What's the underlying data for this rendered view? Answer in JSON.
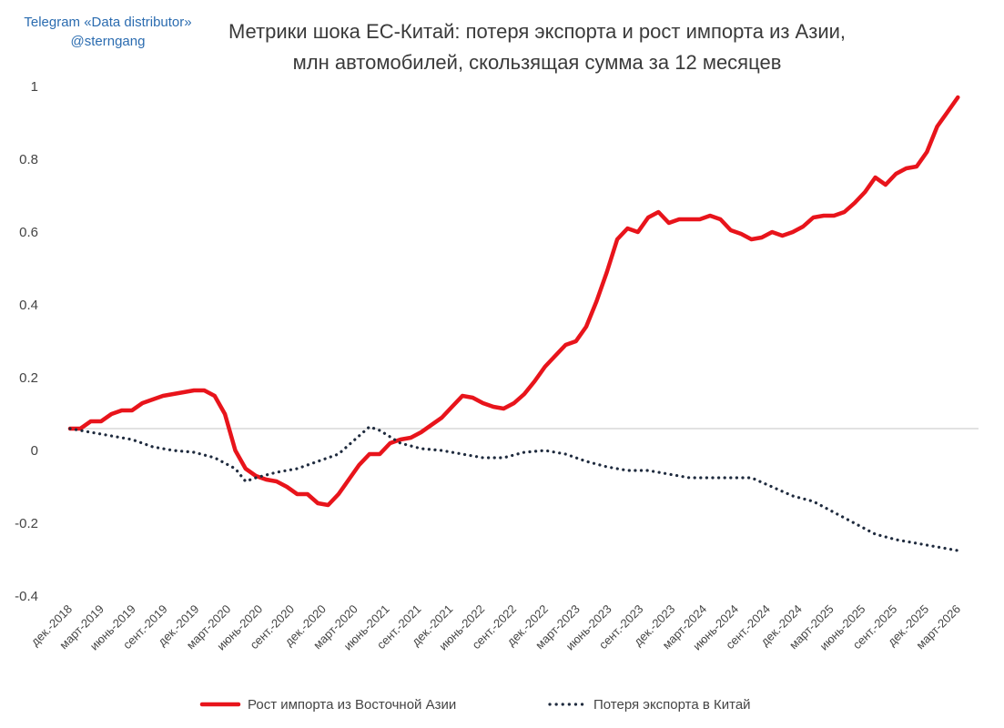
{
  "watermark": {
    "line1": "Telegram «Data distributor»",
    "line2": "@sterngang"
  },
  "title": {
    "line1": "Метрики шока ЕС-Китай: потеря экспорта и рост импорта из Азии,",
    "line2": "млн автомобилей, скользящая сумма за 12 месяцев"
  },
  "chart_data": {
    "type": "line",
    "title": "Метрики шока ЕС-Китай: потеря экспорта и рост импорта из Азии, млн автомобилей, скользящая сумма за 12 месяцев",
    "xlabel": "",
    "ylabel": "",
    "ylim": [
      -0.4,
      1
    ],
    "y_ticks": [
      "1",
      "0.8",
      "0.6",
      "0.4",
      "0.2",
      "0",
      "-0.2",
      "-0.4"
    ],
    "y_tick_values": [
      1,
      0.8,
      0.6,
      0.4,
      0.2,
      0,
      -0.2,
      -0.4
    ],
    "reference_line_y": 0.06,
    "x_tick_labels": [
      "дек.-2018",
      "март-2019",
      "июнь-2019",
      "сент.-2019",
      "дек.-2019",
      "март-2020",
      "июнь-2020",
      "сент.-2020",
      "дек.-2020",
      "март-2020",
      "июнь-2021",
      "сент.-2021",
      "дек.-2021",
      "июнь-2022",
      "сент.-2022",
      "дек.-2022",
      "март-2023",
      "июнь-2023",
      "сент.-2023",
      "дек.-2023",
      "март-2024",
      "июнь-2024",
      "сент.-2024",
      "дек.-2024",
      "март-2025",
      "июнь-2025",
      "сент.-2025",
      "дек.-2025",
      "март-2026"
    ],
    "x_range_months": [
      0,
      88
    ],
    "legend_position": "bottom",
    "series": [
      {
        "name": "Рост импорта из Восточной Азии",
        "color": "#e8141b",
        "style": "solid",
        "points": [
          [
            0,
            0.06
          ],
          [
            1,
            0.06
          ],
          [
            2,
            0.08
          ],
          [
            3,
            0.08
          ],
          [
            4,
            0.1
          ],
          [
            5,
            0.11
          ],
          [
            6,
            0.11
          ],
          [
            7,
            0.13
          ],
          [
            8,
            0.14
          ],
          [
            9,
            0.15
          ],
          [
            10,
            0.155
          ],
          [
            11,
            0.16
          ],
          [
            12,
            0.165
          ],
          [
            13,
            0.165
          ],
          [
            14,
            0.15
          ],
          [
            15,
            0.1
          ],
          [
            16,
            0.0
          ],
          [
            17,
            -0.05
          ],
          [
            18,
            -0.07
          ],
          [
            19,
            -0.08
          ],
          [
            20,
            -0.085
          ],
          [
            21,
            -0.1
          ],
          [
            22,
            -0.12
          ],
          [
            23,
            -0.12
          ],
          [
            24,
            -0.145
          ],
          [
            25,
            -0.15
          ],
          [
            26,
            -0.12
          ],
          [
            27,
            -0.08
          ],
          [
            28,
            -0.04
          ],
          [
            29,
            -0.01
          ],
          [
            30,
            -0.01
          ],
          [
            31,
            0.02
          ],
          [
            32,
            0.03
          ],
          [
            33,
            0.035
          ],
          [
            34,
            0.05
          ],
          [
            35,
            0.07
          ],
          [
            36,
            0.09
          ],
          [
            37,
            0.12
          ],
          [
            38,
            0.15
          ],
          [
            39,
            0.145
          ],
          [
            40,
            0.13
          ],
          [
            41,
            0.12
          ],
          [
            42,
            0.115
          ],
          [
            43,
            0.13
          ],
          [
            44,
            0.155
          ],
          [
            45,
            0.19
          ],
          [
            46,
            0.23
          ],
          [
            47,
            0.26
          ],
          [
            48,
            0.29
          ],
          [
            49,
            0.3
          ],
          [
            50,
            0.34
          ],
          [
            51,
            0.41
          ],
          [
            52,
            0.49
          ],
          [
            53,
            0.58
          ],
          [
            54,
            0.61
          ],
          [
            55,
            0.6
          ],
          [
            56,
            0.64
          ],
          [
            57,
            0.655
          ],
          [
            58,
            0.625
          ],
          [
            59,
            0.635
          ],
          [
            60,
            0.635
          ],
          [
            61,
            0.635
          ],
          [
            62,
            0.645
          ],
          [
            63,
            0.635
          ],
          [
            64,
            0.605
          ],
          [
            65,
            0.595
          ],
          [
            66,
            0.58
          ],
          [
            67,
            0.585
          ],
          [
            68,
            0.6
          ],
          [
            69,
            0.59
          ],
          [
            70,
            0.6
          ],
          [
            71,
            0.615
          ],
          [
            72,
            0.64
          ],
          [
            73,
            0.645
          ],
          [
            74,
            0.645
          ],
          [
            75,
            0.655
          ],
          [
            76,
            0.68
          ],
          [
            77,
            0.71
          ],
          [
            78,
            0.75
          ],
          [
            79,
            0.73
          ],
          [
            80,
            0.76
          ],
          [
            81,
            0.775
          ],
          [
            82,
            0.78
          ],
          [
            83,
            0.82
          ],
          [
            84,
            0.89
          ],
          [
            85,
            0.93
          ],
          [
            86,
            0.97
          ]
        ]
      },
      {
        "name": "Потеря экспорта в Китай",
        "color": "#1f2b3e",
        "style": "dotted",
        "points": [
          [
            0,
            0.06
          ],
          [
            2,
            0.05
          ],
          [
            4,
            0.04
          ],
          [
            6,
            0.03
          ],
          [
            8,
            0.01
          ],
          [
            10,
            0.0
          ],
          [
            12,
            -0.005
          ],
          [
            14,
            -0.02
          ],
          [
            16,
            -0.05
          ],
          [
            17,
            -0.085
          ],
          [
            18,
            -0.075
          ],
          [
            20,
            -0.06
          ],
          [
            22,
            -0.05
          ],
          [
            24,
            -0.03
          ],
          [
            26,
            -0.01
          ],
          [
            28,
            0.04
          ],
          [
            29,
            0.065
          ],
          [
            30,
            0.055
          ],
          [
            32,
            0.02
          ],
          [
            34,
            0.005
          ],
          [
            36,
            0.0
          ],
          [
            38,
            -0.01
          ],
          [
            40,
            -0.02
          ],
          [
            42,
            -0.02
          ],
          [
            44,
            -0.005
          ],
          [
            46,
            0.0
          ],
          [
            48,
            -0.01
          ],
          [
            50,
            -0.03
          ],
          [
            52,
            -0.045
          ],
          [
            54,
            -0.055
          ],
          [
            56,
            -0.055
          ],
          [
            58,
            -0.065
          ],
          [
            60,
            -0.075
          ],
          [
            62,
            -0.075
          ],
          [
            64,
            -0.075
          ],
          [
            66,
            -0.075
          ],
          [
            68,
            -0.1
          ],
          [
            70,
            -0.125
          ],
          [
            72,
            -0.14
          ],
          [
            74,
            -0.17
          ],
          [
            76,
            -0.2
          ],
          [
            78,
            -0.23
          ],
          [
            80,
            -0.245
          ],
          [
            82,
            -0.255
          ],
          [
            84,
            -0.265
          ],
          [
            86,
            -0.275
          ]
        ]
      }
    ]
  }
}
